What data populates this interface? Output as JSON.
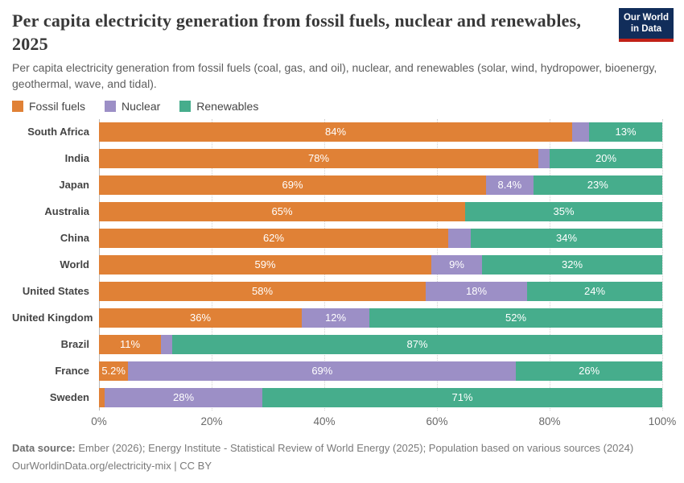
{
  "header": {
    "title": "Per capita electricity generation from fossil fuels, nuclear and renewables, 2025",
    "subtitle": "Per capita electricity generation from fossil fuels (coal, gas, and oil), nuclear, and renewables (solar, wind, hydropower, bioenergy, geothermal, wave, and tidal).",
    "logo": {
      "line1": "Our World",
      "line2": "in Data",
      "bg_color": "#112D5A",
      "accent_color": "#C12117"
    }
  },
  "chart_data": {
    "type": "bar",
    "stacked": true,
    "orientation": "horizontal",
    "xlim": [
      0,
      100
    ],
    "grid": "dotted-vertical",
    "legend_position": "top-left",
    "categories": [
      "South Africa",
      "India",
      "Japan",
      "Australia",
      "China",
      "World",
      "United States",
      "United Kingdom",
      "Brazil",
      "France",
      "Sweden"
    ],
    "series": [
      {
        "name": "Fossil fuels",
        "color": "#E08136",
        "values": [
          84,
          78,
          69,
          65,
          62,
          59,
          58,
          36,
          11,
          5.2,
          1
        ],
        "labels": [
          "84%",
          "78%",
          "69%",
          "65%",
          "62%",
          "59%",
          "58%",
          "36%",
          "11%",
          "5.2%",
          ""
        ]
      },
      {
        "name": "Nuclear",
        "color": "#9C8FC6",
        "values": [
          3,
          2,
          8.4,
          0,
          4,
          9,
          18,
          12,
          2,
          69,
          28
        ],
        "labels": [
          "",
          "",
          "8.4%",
          "",
          "",
          "9%",
          "18%",
          "12%",
          "",
          "69%",
          "28%"
        ]
      },
      {
        "name": "Renewables",
        "color": "#46AD8C",
        "values": [
          13,
          20,
          23,
          35,
          34,
          32,
          24,
          52,
          87,
          26,
          71
        ],
        "labels": [
          "13%",
          "20%",
          "23%",
          "35%",
          "34%",
          "32%",
          "24%",
          "52%",
          "87%",
          "26%",
          "71%"
        ]
      }
    ],
    "ticks": [
      {
        "pos": 0,
        "label": "0%"
      },
      {
        "pos": 20,
        "label": "20%"
      },
      {
        "pos": 40,
        "label": "40%"
      },
      {
        "pos": 60,
        "label": "60%"
      },
      {
        "pos": 80,
        "label": "80%"
      },
      {
        "pos": 100,
        "label": "100%"
      }
    ]
  },
  "footer": {
    "source_label": "Data source:",
    "source_text": " Ember (2026); Energy Institute - Statistical Review of World Energy (2025); Population based on various sources (2024)",
    "link_line": "OurWorldinData.org/electricity-mix | CC BY"
  }
}
